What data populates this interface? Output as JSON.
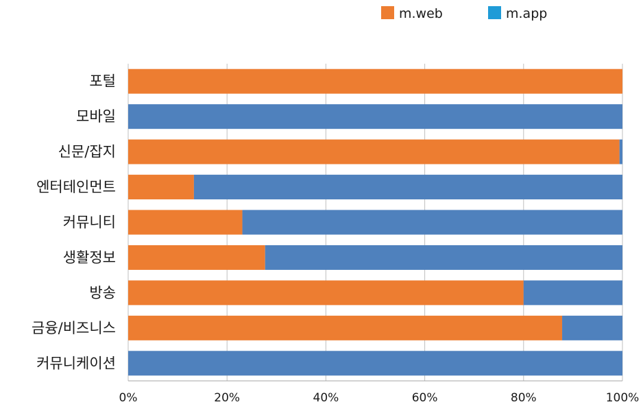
{
  "chart_data": {
    "type": "bar",
    "orientation": "horizontal",
    "stacked": true,
    "normalized": true,
    "categories": [
      "포털",
      "모바일",
      "신문/잡지",
      "엔터테인먼트",
      "커뮤니티",
      "생활정보",
      "방송",
      "금융/비즈니스",
      "커뮤니케이션"
    ],
    "series": [
      {
        "name": "m.web",
        "color": "#ed7d31",
        "values": [
          100,
          0,
          99.4,
          13.3,
          23.1,
          27.7,
          80,
          87.8,
          0
        ]
      },
      {
        "name": "m.app",
        "color": "#4f81bd",
        "values": [
          0,
          100,
          0.6,
          86.7,
          76.9,
          72.3,
          20,
          12.2,
          100
        ]
      }
    ],
    "legend": {
      "position": "top-right",
      "items": [
        {
          "name": "m.web",
          "swatch_color": "#ed7d31"
        },
        {
          "name": "m.app",
          "swatch_color": "#1f9bd7"
        }
      ]
    },
    "xaxis": {
      "range": [
        0,
        100
      ],
      "ticks": [
        0,
        20,
        40,
        60,
        80,
        100
      ],
      "tick_labels": [
        "0%",
        "20%",
        "40%",
        "60%",
        "80%",
        "100%"
      ]
    },
    "grid": {
      "vertical": true,
      "color": "#bfbfbf"
    },
    "title": "",
    "xlabel": "",
    "ylabel": ""
  }
}
